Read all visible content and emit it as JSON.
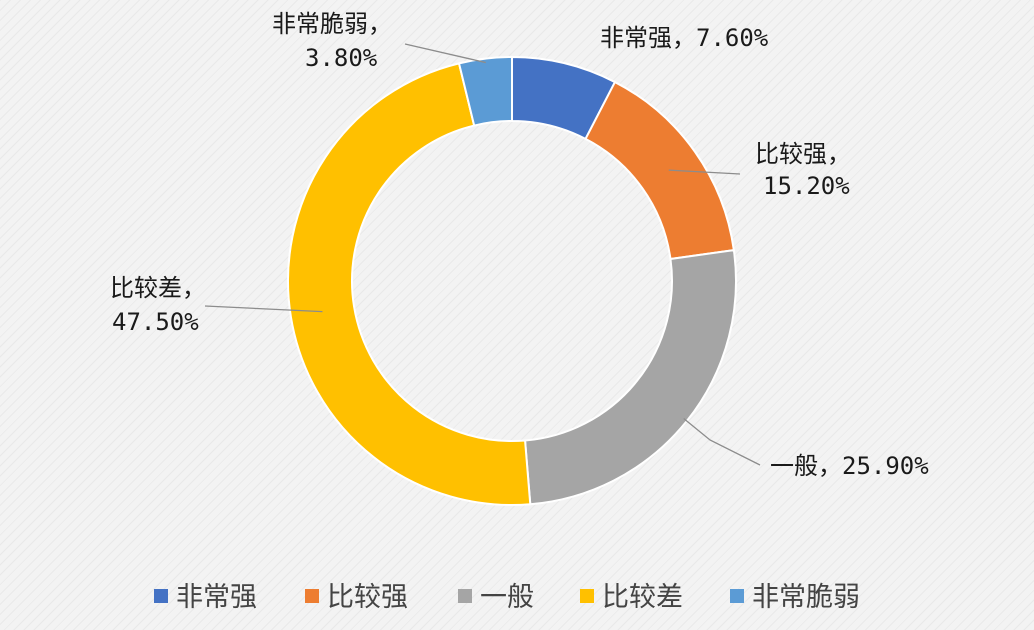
{
  "chart_data": {
    "type": "donut",
    "categories": [
      "非常强",
      "比较强",
      "一般",
      "比较差",
      "非常脆弱"
    ],
    "values": [
      7.6,
      15.2,
      25.9,
      47.5,
      3.8
    ],
    "unit": "%",
    "colors": [
      "#4472c4",
      "#ed7d31",
      "#a5a5a5",
      "#ffc000",
      "#5b9bd5"
    ],
    "data_labels": [
      {
        "name": "非常强",
        "text": "非常强，7.60%"
      },
      {
        "name": "比较强",
        "text": "比较强，",
        "value_text": "15.20%"
      },
      {
        "name": "一般",
        "text": "一般，25.90%"
      },
      {
        "name": "比较差",
        "text": "比较差，",
        "value_text": "47.50%"
      },
      {
        "name": "非常脆弱",
        "text": "非常脆弱，",
        "value_text": "3.80%"
      }
    ],
    "legend": {
      "position": "bottom",
      "entries": [
        "非常强",
        "比较强",
        "一般",
        "比较差",
        "非常脆弱"
      ]
    }
  }
}
